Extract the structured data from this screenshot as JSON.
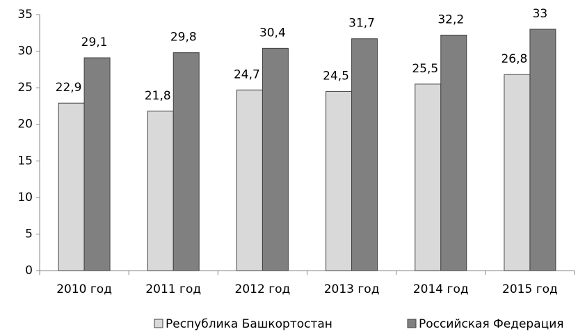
{
  "chart_data": {
    "type": "bar",
    "categories": [
      "2010 год",
      "2011 год",
      "2012 год",
      "2013 год",
      "2014 год",
      "2015 год"
    ],
    "series": [
      {
        "name": "Республика Башкортостан",
        "color": "#d9d9d9",
        "values": [
          22.9,
          21.8,
          24.7,
          24.5,
          25.5,
          26.8
        ],
        "value_labels": [
          "22,9",
          "21,8",
          "24,7",
          "24,5",
          "25,5",
          "26,8"
        ]
      },
      {
        "name": "Российская Федерация",
        "color": "#808080",
        "values": [
          29.1,
          29.8,
          30.4,
          31.7,
          32.2,
          33
        ],
        "value_labels": [
          "29,1",
          "29,8",
          "30,4",
          "31,7",
          "32,2",
          "33"
        ]
      }
    ],
    "ylim": [
      0,
      35
    ],
    "yticks": [
      0,
      5,
      10,
      15,
      20,
      25,
      30,
      35
    ],
    "grid": false,
    "legend": "bottom"
  }
}
